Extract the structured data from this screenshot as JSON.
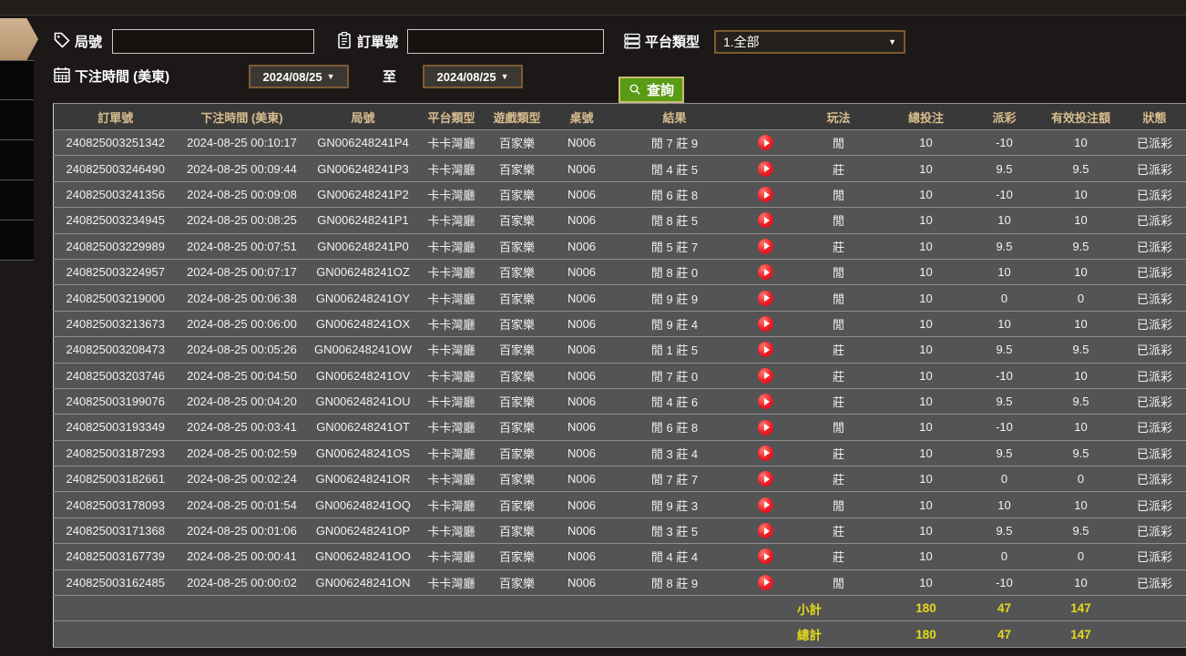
{
  "filters": {
    "game_no": {
      "label": "局號",
      "value": ""
    },
    "order_no": {
      "label": "訂單號",
      "value": ""
    },
    "platform_type": {
      "label": "平台類型",
      "value": "1.全部"
    },
    "bet_time": {
      "label": "下注時間 (美東)"
    },
    "date_from": "2024/08/25",
    "date_to": "2024/08/25",
    "to_label": "至",
    "search_button": "查詢",
    "caret": "▼"
  },
  "table": {
    "headers": [
      "訂單號",
      "下注時間 (美東)",
      "局號",
      "平台類型",
      "遊戲類型",
      "桌號",
      "結果",
      "",
      "玩法",
      "總投注",
      "派彩",
      "有效投注額",
      "狀態"
    ],
    "rows": [
      {
        "order": "240825003251342",
        "time": "2024-08-25 00:10:17",
        "game_no": "GN006248241P4",
        "platform": "卡卡灣廳",
        "game_type": "百家樂",
        "table_no": "N006",
        "result": "閒 7 莊 9",
        "play": "閒",
        "total_bet": "10",
        "payout": "-10",
        "valid_bet": "10",
        "status": "已派彩"
      },
      {
        "order": "240825003246490",
        "time": "2024-08-25 00:09:44",
        "game_no": "GN006248241P3",
        "platform": "卡卡灣廳",
        "game_type": "百家樂",
        "table_no": "N006",
        "result": "閒 4 莊 5",
        "play": "莊",
        "total_bet": "10",
        "payout": "9.5",
        "valid_bet": "9.5",
        "status": "已派彩"
      },
      {
        "order": "240825003241356",
        "time": "2024-08-25 00:09:08",
        "game_no": "GN006248241P2",
        "platform": "卡卡灣廳",
        "game_type": "百家樂",
        "table_no": "N006",
        "result": "閒 6 莊 8",
        "play": "閒",
        "total_bet": "10",
        "payout": "-10",
        "valid_bet": "10",
        "status": "已派彩"
      },
      {
        "order": "240825003234945",
        "time": "2024-08-25 00:08:25",
        "game_no": "GN006248241P1",
        "platform": "卡卡灣廳",
        "game_type": "百家樂",
        "table_no": "N006",
        "result": "閒 8 莊 5",
        "play": "閒",
        "total_bet": "10",
        "payout": "10",
        "valid_bet": "10",
        "status": "已派彩"
      },
      {
        "order": "240825003229989",
        "time": "2024-08-25 00:07:51",
        "game_no": "GN006248241P0",
        "platform": "卡卡灣廳",
        "game_type": "百家樂",
        "table_no": "N006",
        "result": "閒 5 莊 7",
        "play": "莊",
        "total_bet": "10",
        "payout": "9.5",
        "valid_bet": "9.5",
        "status": "已派彩"
      },
      {
        "order": "240825003224957",
        "time": "2024-08-25 00:07:17",
        "game_no": "GN006248241OZ",
        "platform": "卡卡灣廳",
        "game_type": "百家樂",
        "table_no": "N006",
        "result": "閒 8 莊 0",
        "play": "閒",
        "total_bet": "10",
        "payout": "10",
        "valid_bet": "10",
        "status": "已派彩"
      },
      {
        "order": "240825003219000",
        "time": "2024-08-25 00:06:38",
        "game_no": "GN006248241OY",
        "platform": "卡卡灣廳",
        "game_type": "百家樂",
        "table_no": "N006",
        "result": "閒 9 莊 9",
        "play": "閒",
        "total_bet": "10",
        "payout": "0",
        "valid_bet": "0",
        "status": "已派彩"
      },
      {
        "order": "240825003213673",
        "time": "2024-08-25 00:06:00",
        "game_no": "GN006248241OX",
        "platform": "卡卡灣廳",
        "game_type": "百家樂",
        "table_no": "N006",
        "result": "閒 9 莊 4",
        "play": "閒",
        "total_bet": "10",
        "payout": "10",
        "valid_bet": "10",
        "status": "已派彩"
      },
      {
        "order": "240825003208473",
        "time": "2024-08-25 00:05:26",
        "game_no": "GN006248241OW",
        "platform": "卡卡灣廳",
        "game_type": "百家樂",
        "table_no": "N006",
        "result": "閒 1 莊 5",
        "play": "莊",
        "total_bet": "10",
        "payout": "9.5",
        "valid_bet": "9.5",
        "status": "已派彩"
      },
      {
        "order": "240825003203746",
        "time": "2024-08-25 00:04:50",
        "game_no": "GN006248241OV",
        "platform": "卡卡灣廳",
        "game_type": "百家樂",
        "table_no": "N006",
        "result": "閒 7 莊 0",
        "play": "莊",
        "total_bet": "10",
        "payout": "-10",
        "valid_bet": "10",
        "status": "已派彩"
      },
      {
        "order": "240825003199076",
        "time": "2024-08-25 00:04:20",
        "game_no": "GN006248241OU",
        "platform": "卡卡灣廳",
        "game_type": "百家樂",
        "table_no": "N006",
        "result": "閒 4 莊 6",
        "play": "莊",
        "total_bet": "10",
        "payout": "9.5",
        "valid_bet": "9.5",
        "status": "已派彩"
      },
      {
        "order": "240825003193349",
        "time": "2024-08-25 00:03:41",
        "game_no": "GN006248241OT",
        "platform": "卡卡灣廳",
        "game_type": "百家樂",
        "table_no": "N006",
        "result": "閒 6 莊 8",
        "play": "閒",
        "total_bet": "10",
        "payout": "-10",
        "valid_bet": "10",
        "status": "已派彩"
      },
      {
        "order": "240825003187293",
        "time": "2024-08-25 00:02:59",
        "game_no": "GN006248241OS",
        "platform": "卡卡灣廳",
        "game_type": "百家樂",
        "table_no": "N006",
        "result": "閒 3 莊 4",
        "play": "莊",
        "total_bet": "10",
        "payout": "9.5",
        "valid_bet": "9.5",
        "status": "已派彩"
      },
      {
        "order": "240825003182661",
        "time": "2024-08-25 00:02:24",
        "game_no": "GN006248241OR",
        "platform": "卡卡灣廳",
        "game_type": "百家樂",
        "table_no": "N006",
        "result": "閒 7 莊 7",
        "play": "莊",
        "total_bet": "10",
        "payout": "0",
        "valid_bet": "0",
        "status": "已派彩"
      },
      {
        "order": "240825003178093",
        "time": "2024-08-25 00:01:54",
        "game_no": "GN006248241OQ",
        "platform": "卡卡灣廳",
        "game_type": "百家樂",
        "table_no": "N006",
        "result": "閒 9 莊 3",
        "play": "閒",
        "total_bet": "10",
        "payout": "10",
        "valid_bet": "10",
        "status": "已派彩"
      },
      {
        "order": "240825003171368",
        "time": "2024-08-25 00:01:06",
        "game_no": "GN006248241OP",
        "platform": "卡卡灣廳",
        "game_type": "百家樂",
        "table_no": "N006",
        "result": "閒 3 莊 5",
        "play": "莊",
        "total_bet": "10",
        "payout": "9.5",
        "valid_bet": "9.5",
        "status": "已派彩"
      },
      {
        "order": "240825003167739",
        "time": "2024-08-25 00:00:41",
        "game_no": "GN006248241OO",
        "platform": "卡卡灣廳",
        "game_type": "百家樂",
        "table_no": "N006",
        "result": "閒 4 莊 4",
        "play": "莊",
        "total_bet": "10",
        "payout": "0",
        "valid_bet": "0",
        "status": "已派彩"
      },
      {
        "order": "240825003162485",
        "time": "2024-08-25 00:00:02",
        "game_no": "GN006248241ON",
        "platform": "卡卡灣廳",
        "game_type": "百家樂",
        "table_no": "N006",
        "result": "閒 8 莊 9",
        "play": "閒",
        "total_bet": "10",
        "payout": "-10",
        "valid_bet": "10",
        "status": "已派彩"
      }
    ],
    "summary": [
      {
        "label": "小計",
        "total_bet": "180",
        "payout": "47",
        "valid_bet": "147"
      },
      {
        "label": "總計",
        "total_bet": "180",
        "payout": "47",
        "valid_bet": "147"
      }
    ]
  },
  "colors": {
    "positive_green": "#74c044",
    "negative_red": "#8f2035",
    "status_paid_green": "#2fb34a",
    "summary_yellow": "#e3da1b",
    "header_gold": "#d8bd8e",
    "search_button_green": "#5a9b15",
    "select_border_brown": "#7d5a33",
    "sidebar_active_tan": "#c2a380",
    "play_button_red": "#ec1c24"
  }
}
